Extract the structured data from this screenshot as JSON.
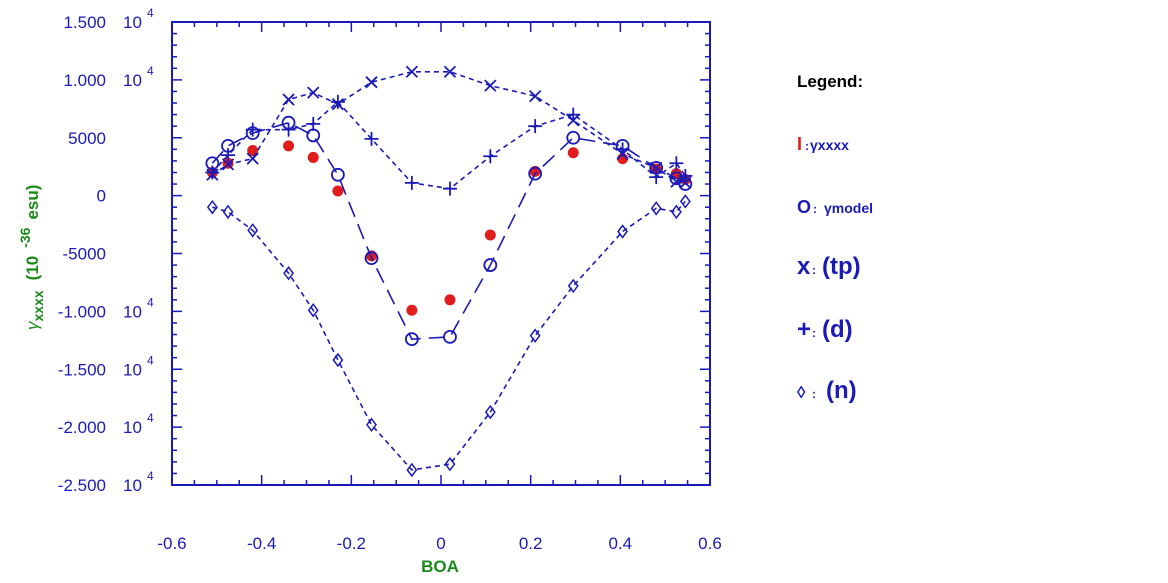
{
  "colors": {
    "axis": "#1a1ab8",
    "series": "#1a1ab8",
    "xxxx": "#e01c1c",
    "axis_title": "#1b8a1b",
    "legend_title": "#000000"
  },
  "chart_data": {
    "type": "scatter",
    "xlim": [
      -0.6,
      0.6
    ],
    "ylim": [
      -25000,
      15000
    ],
    "grid": false,
    "legend_position": "right",
    "x_ticks": [
      "-0.6",
      "-0.4",
      "-0.2",
      "0",
      "0.2",
      "0.4",
      "0.6"
    ],
    "y_ticks": [
      {
        "mantissa": "1.500",
        "base": "10",
        "exp": "4",
        "value": 15000
      },
      {
        "mantissa": "1.000",
        "base": "10",
        "exp": "4",
        "value": 10000
      },
      {
        "mantissa": "5000",
        "base": "",
        "exp": "",
        "value": 5000
      },
      {
        "mantissa": "0",
        "base": "",
        "exp": "",
        "value": 0
      },
      {
        "mantissa": "-5000",
        "base": "",
        "exp": "",
        "value": -5000
      },
      {
        "mantissa": "-1.000",
        "base": "10",
        "exp": "4",
        "value": -10000
      },
      {
        "mantissa": "-1.500",
        "base": "10",
        "exp": "4",
        "value": -15000
      },
      {
        "mantissa": "-2.000",
        "base": "10",
        "exp": "4",
        "value": -20000
      },
      {
        "mantissa": "-2.500",
        "base": "10",
        "exp": "4",
        "value": -25000
      }
    ],
    "xlabel": "BOA",
    "ylabel": {
      "gamma": "γ",
      "sub": "xxxx",
      "paren": "(10",
      "exp": "-36",
      "unit": "esu)"
    },
    "legend": {
      "title": "Legend:",
      "entries": [
        {
          "symbol": "I",
          "sep": ":",
          "label": "γxxxx",
          "series": "xxxx"
        },
        {
          "symbol": "O",
          "sep": ":",
          "label": "γmodel",
          "series": "model"
        },
        {
          "symbol": "x",
          "sep": ":",
          "label": "(tp)",
          "series": "tp"
        },
        {
          "symbol": "+",
          "sep": ":",
          "label": "(d)",
          "series": "d"
        },
        {
          "symbol": "◊",
          "sep": ":",
          "label": "(n)",
          "series": "n"
        }
      ]
    },
    "series": [
      {
        "id": "xxxx",
        "marker": "filled-circle",
        "line": "none",
        "x": [
          -0.51,
          -0.475,
          -0.42,
          -0.34,
          -0.285,
          -0.23,
          -0.155,
          -0.065,
          0.02,
          0.11,
          0.21,
          0.295,
          0.405,
          0.48,
          0.525,
          0.545
        ],
        "y": [
          2000,
          2800,
          3900,
          4300,
          3300,
          400,
          -5200,
          -9900,
          -9000,
          -3400,
          2100,
          3700,
          3200,
          2300,
          1900,
          1400
        ]
      },
      {
        "id": "model",
        "marker": "open-circle",
        "line": "long-dash",
        "x": [
          -0.51,
          -0.475,
          -0.42,
          -0.34,
          -0.285,
          -0.23,
          -0.155,
          -0.065,
          0.02,
          0.11,
          0.21,
          0.295,
          0.405,
          0.48,
          0.525,
          0.545
        ],
        "y": [
          2800,
          4300,
          5400,
          6300,
          5200,
          1800,
          -5400,
          -12400,
          -12200,
          -6000,
          1900,
          5000,
          4300,
          2400,
          1500,
          1000
        ]
      },
      {
        "id": "tp",
        "marker": "x",
        "line": "short-dash",
        "x": [
          -0.51,
          -0.475,
          -0.42,
          -0.34,
          -0.285,
          -0.23,
          -0.155,
          -0.065,
          0.02,
          0.11,
          0.21,
          0.295,
          0.405,
          0.48,
          0.525,
          0.545
        ],
        "y": [
          1800,
          2700,
          3200,
          8300,
          8900,
          7900,
          9800,
          10700,
          10700,
          9500,
          8600,
          6500,
          3600,
          2400,
          1200,
          1100
        ]
      },
      {
        "id": "d",
        "marker": "plus",
        "line": "short-dash",
        "x": [
          -0.51,
          -0.475,
          -0.42,
          -0.34,
          -0.285,
          -0.23,
          -0.155,
          -0.065,
          0.02,
          0.11,
          0.21,
          0.295,
          0.405,
          0.48,
          0.525,
          0.545
        ],
        "y": [
          2000,
          3500,
          5700,
          5700,
          6200,
          8100,
          4900,
          1100,
          600,
          3400,
          6000,
          7000,
          4000,
          1600,
          2800,
          1700
        ]
      },
      {
        "id": "n",
        "marker": "diamond",
        "line": "short-dash",
        "x": [
          -0.51,
          -0.475,
          -0.42,
          -0.34,
          -0.285,
          -0.23,
          -0.155,
          -0.065,
          0.02,
          0.11,
          0.21,
          0.295,
          0.405,
          0.48,
          0.525,
          0.545
        ],
        "y": [
          -1000,
          -1400,
          -3000,
          -6700,
          -9900,
          -14200,
          -19800,
          -23700,
          -23200,
          -18700,
          -12100,
          -7800,
          -3100,
          -1100,
          -1400,
          -500
        ]
      }
    ]
  }
}
